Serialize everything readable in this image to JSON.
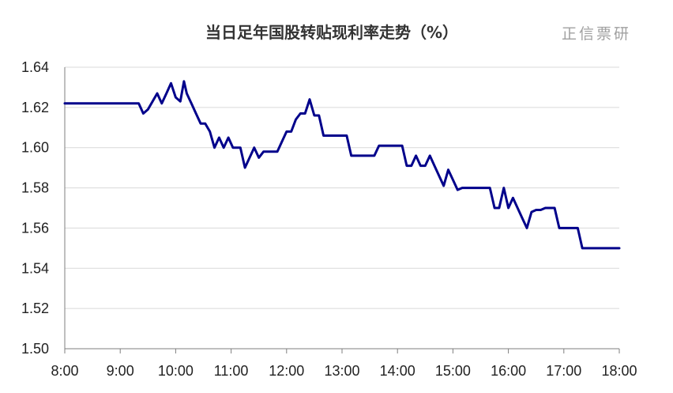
{
  "chart_data": {
    "type": "line",
    "title": "当日足年国股转贴现利率走势（%）",
    "watermark": "正信票研",
    "xlabel": "",
    "ylabel": "",
    "ylim": [
      1.5,
      1.64
    ],
    "y_ticks": [
      "1.50",
      "1.52",
      "1.54",
      "1.56",
      "1.58",
      "1.60",
      "1.62",
      "1.64"
    ],
    "x_ticks": [
      "8:00",
      "9:00",
      "10:00",
      "11:00",
      "12:00",
      "13:00",
      "14:00",
      "15:00",
      "16:00",
      "17:00",
      "18:00"
    ],
    "x_range_hours": [
      8,
      18
    ],
    "grid": true,
    "line_color": "#00008B",
    "series": [
      {
        "name": "",
        "points": [
          [
            "8:00",
            1.622
          ],
          [
            "9:20",
            1.622
          ],
          [
            "9:25",
            1.617
          ],
          [
            "9:30",
            1.619
          ],
          [
            "9:40",
            1.627
          ],
          [
            "9:45",
            1.622
          ],
          [
            "9:50",
            1.627
          ],
          [
            "9:55",
            1.632
          ],
          [
            "10:00",
            1.625
          ],
          [
            "10:05",
            1.623
          ],
          [
            "10:09",
            1.633
          ],
          [
            "10:12",
            1.627
          ],
          [
            "10:17",
            1.622
          ],
          [
            "10:22",
            1.617
          ],
          [
            "10:27",
            1.612
          ],
          [
            "10:32",
            1.612
          ],
          [
            "10:37",
            1.608
          ],
          [
            "10:42",
            1.6
          ],
          [
            "10:47",
            1.605
          ],
          [
            "10:52",
            1.6
          ],
          [
            "10:57",
            1.605
          ],
          [
            "11:02",
            1.6
          ],
          [
            "11:10",
            1.6
          ],
          [
            "11:15",
            1.59
          ],
          [
            "11:25",
            1.6
          ],
          [
            "11:30",
            1.595
          ],
          [
            "11:35",
            1.598
          ],
          [
            "11:50",
            1.598
          ],
          [
            "11:55",
            1.603
          ],
          [
            "12:00",
            1.608
          ],
          [
            "12:05",
            1.608
          ],
          [
            "12:10",
            1.614
          ],
          [
            "12:15",
            1.617
          ],
          [
            "12:20",
            1.617
          ],
          [
            "12:25",
            1.624
          ],
          [
            "12:30",
            1.616
          ],
          [
            "12:35",
            1.616
          ],
          [
            "12:40",
            1.606
          ],
          [
            "13:05",
            1.606
          ],
          [
            "13:10",
            1.596
          ],
          [
            "13:35",
            1.596
          ],
          [
            "13:40",
            1.601
          ],
          [
            "14:05",
            1.601
          ],
          [
            "14:10",
            1.591
          ],
          [
            "14:15",
            1.591
          ],
          [
            "14:20",
            1.596
          ],
          [
            "14:25",
            1.591
          ],
          [
            "14:30",
            1.591
          ],
          [
            "14:35",
            1.596
          ],
          [
            "14:40",
            1.591
          ],
          [
            "14:50",
            1.581
          ],
          [
            "14:55",
            1.589
          ],
          [
            "15:00",
            1.584
          ],
          [
            "15:05",
            1.579
          ],
          [
            "15:10",
            1.58
          ],
          [
            "15:40",
            1.58
          ],
          [
            "15:45",
            1.57
          ],
          [
            "15:50",
            1.57
          ],
          [
            "15:55",
            1.58
          ],
          [
            "16:00",
            1.57
          ],
          [
            "16:05",
            1.575
          ],
          [
            "16:15",
            1.565
          ],
          [
            "16:20",
            1.56
          ],
          [
            "16:25",
            1.568
          ],
          [
            "16:30",
            1.569
          ],
          [
            "16:35",
            1.569
          ],
          [
            "16:40",
            1.57
          ],
          [
            "16:50",
            1.57
          ],
          [
            "16:55",
            1.56
          ],
          [
            "17:15",
            1.56
          ],
          [
            "17:20",
            1.55
          ],
          [
            "18:00",
            1.55
          ]
        ]
      }
    ]
  }
}
